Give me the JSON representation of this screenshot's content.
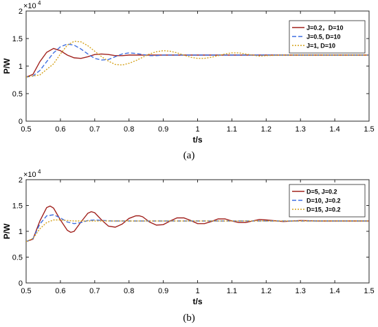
{
  "chart_data": [
    {
      "type": "line",
      "caption": "(a)",
      "xlabel": "t/s",
      "ylabel": "P/W",
      "exponent_label": "×10",
      "exponent_power": "4",
      "xlim": [
        0.5,
        1.5
      ],
      "ylim": [
        0,
        2
      ],
      "xticks": [
        "0.5",
        "0.6",
        "0.7",
        "0.8",
        "0.9",
        "1",
        "1.1",
        "1.2",
        "1.3",
        "1.4",
        "1.5"
      ],
      "yticks": [
        "0",
        "0.5",
        "1",
        "1.5",
        "2"
      ],
      "grid": false,
      "legend_position": "top-right",
      "series": [
        {
          "name": "J=0.2，D=10",
          "color": "#a0201c",
          "dash": "solid",
          "x": [
            0.5,
            0.52,
            0.54,
            0.56,
            0.58,
            0.6,
            0.62,
            0.64,
            0.66,
            0.68,
            0.7,
            0.72,
            0.74,
            0.76,
            0.78,
            0.8,
            0.85,
            0.9,
            1.0,
            1.5
          ],
          "y": [
            0.8,
            0.85,
            1.08,
            1.25,
            1.32,
            1.28,
            1.2,
            1.15,
            1.14,
            1.17,
            1.21,
            1.22,
            1.21,
            1.19,
            1.19,
            1.2,
            1.2,
            1.2,
            1.2,
            1.2
          ]
        },
        {
          "name": "J=0.5, D=10",
          "color": "#3f6fe0",
          "dash": "dashed",
          "x": [
            0.5,
            0.52,
            0.54,
            0.56,
            0.58,
            0.6,
            0.62,
            0.64,
            0.66,
            0.68,
            0.7,
            0.72,
            0.74,
            0.76,
            0.78,
            0.8,
            0.82,
            0.84,
            0.86,
            0.88,
            0.9,
            0.95,
            1.0,
            1.1,
            1.5
          ],
          "y": [
            0.8,
            0.82,
            0.92,
            1.08,
            1.24,
            1.35,
            1.4,
            1.38,
            1.31,
            1.22,
            1.14,
            1.11,
            1.12,
            1.17,
            1.22,
            1.24,
            1.23,
            1.21,
            1.19,
            1.19,
            1.2,
            1.2,
            1.2,
            1.2,
            1.2
          ]
        },
        {
          "name": "J=1, D=10",
          "color": "#d4a017",
          "dash": "dotted",
          "x": [
            0.5,
            0.54,
            0.58,
            0.6,
            0.62,
            0.64,
            0.66,
            0.68,
            0.7,
            0.72,
            0.74,
            0.76,
            0.78,
            0.8,
            0.82,
            0.84,
            0.86,
            0.88,
            0.9,
            0.92,
            0.94,
            0.96,
            0.98,
            1.0,
            1.02,
            1.04,
            1.06,
            1.08,
            1.1,
            1.12,
            1.14,
            1.16,
            1.18,
            1.2,
            1.25,
            1.3,
            1.5
          ],
          "y": [
            0.8,
            0.84,
            1.04,
            1.22,
            1.38,
            1.45,
            1.44,
            1.37,
            1.27,
            1.17,
            1.09,
            1.03,
            1.02,
            1.05,
            1.1,
            1.16,
            1.22,
            1.26,
            1.28,
            1.27,
            1.24,
            1.2,
            1.16,
            1.14,
            1.14,
            1.16,
            1.19,
            1.22,
            1.24,
            1.24,
            1.22,
            1.2,
            1.18,
            1.19,
            1.2,
            1.2,
            1.2
          ]
        }
      ]
    },
    {
      "type": "line",
      "caption": "(b)",
      "xlabel": "t/s",
      "ylabel": "P/W",
      "exponent_label": "×10",
      "exponent_power": "4",
      "xlim": [
        0.5,
        1.5
      ],
      "ylim": [
        0,
        2
      ],
      "xticks": [
        "0.5",
        "0.6",
        "0.7",
        "0.8",
        "0.9",
        "1",
        "1.1",
        "1.2",
        "1.3",
        "1.4",
        "1.5"
      ],
      "yticks": [
        "0",
        "0.5",
        "1",
        "1.5",
        "2"
      ],
      "grid": false,
      "legend_position": "top-right",
      "series": [
        {
          "name": "D=5, J=0.2",
          "color": "#a0201c",
          "dash": "solid",
          "x": [
            0.5,
            0.52,
            0.54,
            0.56,
            0.57,
            0.58,
            0.6,
            0.62,
            0.63,
            0.64,
            0.66,
            0.68,
            0.69,
            0.7,
            0.72,
            0.74,
            0.76,
            0.78,
            0.8,
            0.82,
            0.83,
            0.84,
            0.86,
            0.88,
            0.9,
            0.92,
            0.94,
            0.96,
            0.98,
            1.0,
            1.02,
            1.04,
            1.06,
            1.08,
            1.1,
            1.12,
            1.14,
            1.16,
            1.18,
            1.2,
            1.25,
            1.3,
            1.35,
            1.4,
            1.5
          ],
          "y": [
            0.8,
            0.85,
            1.2,
            1.46,
            1.49,
            1.45,
            1.22,
            1.02,
            0.98,
            1.0,
            1.18,
            1.35,
            1.38,
            1.36,
            1.22,
            1.1,
            1.08,
            1.14,
            1.25,
            1.3,
            1.3,
            1.28,
            1.18,
            1.12,
            1.13,
            1.2,
            1.26,
            1.26,
            1.21,
            1.15,
            1.15,
            1.19,
            1.24,
            1.24,
            1.2,
            1.17,
            1.17,
            1.2,
            1.23,
            1.22,
            1.19,
            1.21,
            1.2,
            1.2,
            1.2
          ]
        },
        {
          "name": "D=10, J=0.2",
          "color": "#3f6fe0",
          "dash": "dashed",
          "x": [
            0.5,
            0.52,
            0.54,
            0.56,
            0.58,
            0.6,
            0.62,
            0.64,
            0.66,
            0.68,
            0.7,
            0.75,
            0.8,
            1.5
          ],
          "y": [
            0.8,
            0.86,
            1.14,
            1.3,
            1.32,
            1.26,
            1.18,
            1.15,
            1.17,
            1.21,
            1.22,
            1.2,
            1.2,
            1.2
          ]
        },
        {
          "name": "D=15, J=0.2",
          "color": "#d4a017",
          "dash": "dotted",
          "x": [
            0.5,
            0.52,
            0.54,
            0.56,
            0.58,
            0.6,
            0.62,
            0.64,
            0.66,
            0.7,
            1.5
          ],
          "y": [
            0.8,
            0.86,
            1.05,
            1.17,
            1.22,
            1.22,
            1.21,
            1.2,
            1.2,
            1.2,
            1.2
          ]
        }
      ]
    }
  ]
}
